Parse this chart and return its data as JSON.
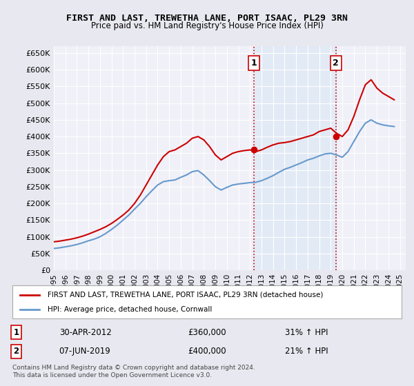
{
  "title": "FIRST AND LAST, TREWETHA LANE, PORT ISAAC, PL29 3RN",
  "subtitle": "Price paid vs. HM Land Registry's House Price Index (HPI)",
  "ylim": [
    0,
    670000
  ],
  "yticks": [
    0,
    50000,
    100000,
    150000,
    200000,
    250000,
    300000,
    350000,
    400000,
    450000,
    500000,
    550000,
    600000,
    650000
  ],
  "ytick_labels": [
    "£0",
    "£50K",
    "£100K",
    "£150K",
    "£200K",
    "£250K",
    "£300K",
    "£350K",
    "£400K",
    "£450K",
    "£500K",
    "£550K",
    "£600K",
    "£650K"
  ],
  "bg_color": "#e8e8f0",
  "plot_bg_color": "#f0f0f8",
  "grid_color": "#ffffff",
  "red_line_color": "#cc0000",
  "blue_line_color": "#6699cc",
  "vline_color": "#cc0000",
  "vline_style": "dotted",
  "marker1_x": 2012.33,
  "marker1_y": 360000,
  "marker2_x": 2019.44,
  "marker2_y": 400000,
  "legend_label1": "FIRST AND LAST, TREWETHA LANE, PORT ISAAC, PL29 3RN (detached house)",
  "legend_label2": "HPI: Average price, detached house, Cornwall",
  "note1_num": "1",
  "note1_date": "30-APR-2012",
  "note1_price": "£360,000",
  "note1_hpi": "31% ↑ HPI",
  "note2_num": "2",
  "note2_date": "07-JUN-2019",
  "note2_price": "£400,000",
  "note2_hpi": "21% ↑ HPI",
  "footer": "Contains HM Land Registry data © Crown copyright and database right 2024.\nThis data is licensed under the Open Government Licence v3.0.",
  "red_x": [
    1995.0,
    1995.5,
    1996.0,
    1996.5,
    1997.0,
    1997.5,
    1998.0,
    1998.5,
    1999.0,
    1999.5,
    2000.0,
    2000.5,
    2001.0,
    2001.5,
    2002.0,
    2002.5,
    2003.0,
    2003.5,
    2004.0,
    2004.5,
    2005.0,
    2005.5,
    2006.0,
    2006.5,
    2007.0,
    2007.5,
    2008.0,
    2008.5,
    2009.0,
    2009.5,
    2010.0,
    2010.5,
    2011.0,
    2011.5,
    2012.0,
    2012.5,
    2013.0,
    2013.5,
    2014.0,
    2014.5,
    2015.0,
    2015.5,
    2016.0,
    2016.5,
    2017.0,
    2017.5,
    2018.0,
    2018.5,
    2019.0,
    2019.5,
    2020.0,
    2020.5,
    2021.0,
    2021.5,
    2022.0,
    2022.5,
    2023.0,
    2023.5,
    2024.0,
    2024.5
  ],
  "red_y": [
    85000,
    87000,
    90000,
    93000,
    97000,
    102000,
    108000,
    115000,
    122000,
    130000,
    140000,
    152000,
    165000,
    180000,
    200000,
    225000,
    255000,
    285000,
    315000,
    340000,
    355000,
    360000,
    370000,
    380000,
    395000,
    400000,
    390000,
    370000,
    345000,
    330000,
    340000,
    350000,
    355000,
    358000,
    360000,
    355000,
    360000,
    368000,
    375000,
    380000,
    382000,
    385000,
    390000,
    395000,
    400000,
    405000,
    415000,
    420000,
    425000,
    410000,
    400000,
    420000,
    460000,
    510000,
    555000,
    570000,
    545000,
    530000,
    520000,
    510000
  ],
  "blue_x": [
    1995.0,
    1995.5,
    1996.0,
    1996.5,
    1997.0,
    1997.5,
    1998.0,
    1998.5,
    1999.0,
    1999.5,
    2000.0,
    2000.5,
    2001.0,
    2001.5,
    2002.0,
    2002.5,
    2003.0,
    2003.5,
    2004.0,
    2004.5,
    2005.0,
    2005.5,
    2006.0,
    2006.5,
    2007.0,
    2007.5,
    2008.0,
    2008.5,
    2009.0,
    2009.5,
    2010.0,
    2010.5,
    2011.0,
    2011.5,
    2012.0,
    2012.5,
    2013.0,
    2013.5,
    2014.0,
    2014.5,
    2015.0,
    2015.5,
    2016.0,
    2016.5,
    2017.0,
    2017.5,
    2018.0,
    2018.5,
    2019.0,
    2019.5,
    2020.0,
    2020.5,
    2021.0,
    2021.5,
    2022.0,
    2022.5,
    2023.0,
    2023.5,
    2024.0,
    2024.5
  ],
  "blue_y": [
    65000,
    67000,
    70000,
    73000,
    77000,
    82000,
    88000,
    93000,
    100000,
    110000,
    122000,
    135000,
    150000,
    165000,
    183000,
    200000,
    220000,
    238000,
    255000,
    265000,
    268000,
    270000,
    278000,
    285000,
    295000,
    298000,
    285000,
    268000,
    250000,
    240000,
    248000,
    255000,
    258000,
    260000,
    262000,
    263000,
    268000,
    275000,
    283000,
    293000,
    302000,
    308000,
    315000,
    322000,
    330000,
    335000,
    342000,
    348000,
    350000,
    345000,
    338000,
    355000,
    385000,
    415000,
    440000,
    450000,
    440000,
    435000,
    432000,
    430000
  ],
  "xlim": [
    1995.0,
    2025.5
  ],
  "xticks": [
    1995,
    1996,
    1997,
    1998,
    1999,
    2000,
    2001,
    2002,
    2003,
    2004,
    2005,
    2006,
    2007,
    2008,
    2009,
    2010,
    2011,
    2012,
    2013,
    2014,
    2015,
    2016,
    2017,
    2018,
    2019,
    2020,
    2021,
    2022,
    2023,
    2024,
    2025
  ]
}
